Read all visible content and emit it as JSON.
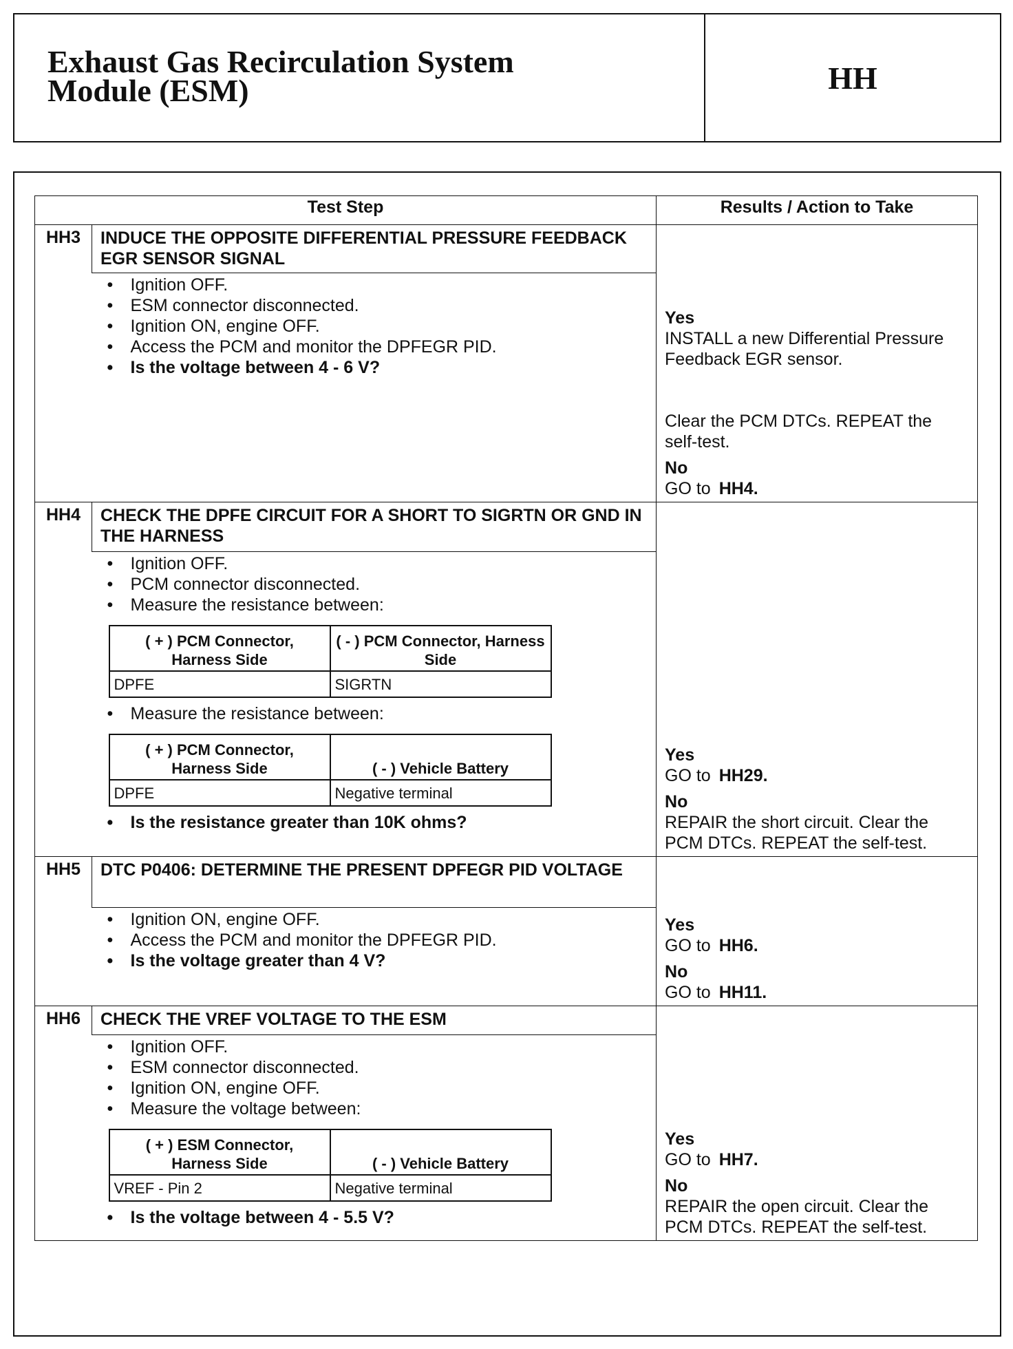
{
  "header": {
    "title": [
      "Exhaust Gas Recirculation System",
      "Module (ESM)"
    ],
    "code": "HH"
  },
  "table": {
    "columns": [
      "Test Step",
      "Results / Action to Take"
    ],
    "steps": [
      {
        "id": "HH3",
        "title": "INDUCE THE OPPOSITE DIFFERENTIAL PRESSURE FEEDBACK EGR SENSOR SIGNAL",
        "blocks": [
          {
            "bullets": [
              "Ignition OFF.",
              "ESM connector disconnected.",
              "Ignition ON, engine OFF.",
              "Access the PCM and monitor the DPFEGR PID."
            ]
          }
        ],
        "question": "Is the voltage between 4 - 6 V?",
        "results": [
          {
            "label": "Yes",
            "text": "INSTALL a new Differential Pressure Feedback EGR sensor.",
            "note": "Clear the PCM DTCs. REPEAT the self-test."
          },
          {
            "label": "No",
            "text": "GO to",
            "ref": "HH4."
          }
        ]
      },
      {
        "id": "HH4",
        "title": "CHECK THE DPFE CIRCUIT FOR A SHORT TO SIGRTN OR GND IN THE HARNESS",
        "blocks": [
          {
            "bullets": [
              "Ignition OFF.",
              "PCM connector disconnected.",
              "Measure the resistance between:"
            ]
          },
          {
            "table": {
              "head": [
                "( + ) PCM Connector, Harness Side",
                "( - ) PCM Connector, Harness Side"
              ],
              "row": [
                "DPFE",
                "SIGRTN"
              ]
            }
          },
          {
            "bullets": [
              "Measure the resistance between:"
            ]
          },
          {
            "table": {
              "head": [
                "( + ) PCM Connector, Harness Side",
                "( - ) Vehicle Battery"
              ],
              "row": [
                "DPFE",
                "Negative terminal"
              ]
            }
          }
        ],
        "question": "Is the resistance greater than 10K ohms?",
        "results": [
          {
            "label": "Yes",
            "text": "GO to",
            "ref": "HH29."
          },
          {
            "label": "No",
            "text": "REPAIR the short circuit. Clear the PCM DTCs. REPEAT the self-test."
          }
        ]
      },
      {
        "id": "HH5",
        "title": "DTC P0406: DETERMINE THE PRESENT DPFEGR PID VOLTAGE",
        "blocks": [
          {
            "bullets": [
              "Ignition ON, engine OFF.",
              "Access the PCM and monitor the DPFEGR PID."
            ]
          }
        ],
        "question": "Is the voltage greater than 4 V?",
        "results": [
          {
            "label": "Yes",
            "text": "GO to",
            "ref": "HH6."
          },
          {
            "label": "No",
            "text": "GO to",
            "ref": "HH11."
          }
        ]
      },
      {
        "id": "HH6",
        "title": "CHECK THE VREF VOLTAGE TO THE ESM",
        "blocks": [
          {
            "bullets": [
              "Ignition OFF.",
              "ESM connector disconnected.",
              "Ignition ON, engine OFF.",
              "Measure the voltage between:"
            ]
          },
          {
            "table": {
              "head": [
                "( + ) ESM Connector, Harness Side",
                "( - ) Vehicle Battery"
              ],
              "row": [
                "VREF - Pin 2",
                "Negative terminal"
              ]
            }
          }
        ],
        "question": "Is the voltage between 4 - 5.5 V?",
        "results": [
          {
            "label": "Yes",
            "text": "GO to",
            "ref": "HH7."
          },
          {
            "label": "No",
            "text": "REPAIR the open circuit. Clear the PCM DTCs. REPEAT the self-test."
          }
        ]
      }
    ]
  }
}
